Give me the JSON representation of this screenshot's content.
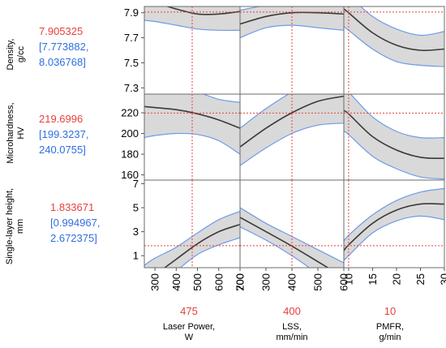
{
  "chart_data": {
    "type": "line",
    "title": "",
    "grid": false,
    "legend": "none",
    "colors": {
      "curve": "#3a3a3a",
      "band_fill": "#d9d9d9",
      "band_edge": "#6f9ae8",
      "crosshair": "#e8403c",
      "current_value": "#e8403c",
      "interval": "#2f6fe0"
    },
    "factors": [
      {
        "label": "Laser Power,",
        "unit": "W",
        "current": "475",
        "current_value": 475,
        "ticks": [
          "300",
          "400",
          "500",
          "600",
          "700"
        ],
        "tick_values": [
          300,
          400,
          500,
          600,
          700
        ],
        "xlim": [
          250,
          700
        ]
      },
      {
        "label": "LSS,",
        "unit": "mm/min",
        "current": "400",
        "current_value": 400,
        "ticks": [
          "200",
          "300",
          "400",
          "500",
          "600"
        ],
        "tick_values": [
          200,
          300,
          400,
          500,
          600
        ],
        "xlim": [
          200,
          600
        ]
      },
      {
        "label": "PMFR,",
        "unit": "g/min",
        "current": "10",
        "current_value": 10,
        "ticks": [
          "10",
          "15",
          "20",
          "25",
          "30"
        ],
        "tick_values": [
          10,
          15,
          20,
          25,
          30
        ],
        "xlim": [
          9,
          30
        ]
      }
    ],
    "responses": [
      {
        "label": "Density,",
        "unit": "g/cc",
        "predicted": "7.905325",
        "ci_low": "[7.773882,",
        "ci_high": "8.036768]",
        "predicted_value": 7.905325,
        "ticks": [
          "7.3",
          "7.5",
          "7.7",
          "7.9"
        ],
        "tick_values": [
          7.3,
          7.5,
          7.7,
          7.9
        ],
        "ylim": [
          7.25,
          7.95
        ]
      },
      {
        "label": "Microhardness,",
        "unit": "HV",
        "predicted": "219.6996",
        "ci_low": "[199.3237,",
        "ci_high": "240.0755]",
        "predicted_value": 219.6996,
        "ticks": [
          "160",
          "180",
          "200",
          "220"
        ],
        "tick_values": [
          160,
          180,
          200,
          220
        ],
        "ylim": [
          155,
          238
        ]
      },
      {
        "label": "Single-layer height,",
        "unit": "mm",
        "predicted": "1.833671",
        "ci_low": "[0.994967,",
        "ci_high": "2.672375]",
        "predicted_value": 1.833671,
        "ticks": [
          "1",
          "3",
          "5",
          "7"
        ],
        "tick_values": [
          1,
          3,
          5,
          7
        ],
        "ylim": [
          0,
          7.3
        ]
      }
    ],
    "cells": [
      [
        {
          "x": [
            250,
            300,
            400,
            500,
            600,
            700
          ],
          "y": [
            7.99,
            7.98,
            7.93,
            7.89,
            7.89,
            7.91
          ],
          "lower": [
            7.84,
            7.83,
            7.8,
            7.77,
            7.76,
            7.76
          ],
          "upper": [
            8.13,
            8.12,
            8.06,
            8.02,
            8.02,
            8.06
          ]
        },
        {
          "x": [
            200,
            300,
            400,
            500,
            600
          ],
          "y": [
            7.81,
            7.87,
            7.9,
            7.9,
            7.89
          ],
          "lower": [
            7.7,
            7.78,
            7.8,
            7.78,
            7.76
          ],
          "upper": [
            7.92,
            7.96,
            7.99,
            8.02,
            8.02
          ]
        },
        {
          "x": [
            9,
            10,
            15,
            20,
            25,
            30
          ],
          "y": [
            7.93,
            7.9,
            7.74,
            7.64,
            7.6,
            7.61
          ],
          "lower": [
            7.79,
            7.76,
            7.61,
            7.51,
            7.48,
            7.47
          ],
          "upper": [
            8.07,
            8.04,
            7.87,
            7.77,
            7.72,
            7.75
          ]
        }
      ],
      [
        {
          "x": [
            250,
            300,
            400,
            500,
            600,
            700
          ],
          "y": [
            226,
            225,
            223,
            219,
            213,
            205
          ],
          "lower": [
            196,
            198,
            200,
            199,
            193,
            180
          ],
          "upper": [
            255,
            252,
            246,
            240,
            233,
            230
          ]
        },
        {
          "x": [
            200,
            300,
            400,
            500,
            600
          ],
          "y": [
            187,
            205,
            220,
            231,
            236
          ],
          "lower": [
            169,
            186,
            200,
            208,
            210
          ],
          "upper": [
            205,
            224,
            240,
            254,
            262
          ]
        },
        {
          "x": [
            9,
            10,
            15,
            20,
            25,
            30
          ],
          "y": [
            222,
            219,
            197,
            184,
            177,
            176
          ],
          "lower": [
            202,
            199,
            178,
            166,
            158,
            156
          ],
          "upper": [
            242,
            240,
            216,
            202,
            196,
            196
          ]
        }
      ],
      [
        {
          "x": [
            250,
            300,
            400,
            500,
            600,
            700
          ],
          "y": [
            -1.4,
            -0.6,
            0.7,
            2.0,
            3.0,
            3.6
          ],
          "lower": [
            -3.0,
            -2.0,
            -0.3,
            1.1,
            1.9,
            2.5
          ],
          "upper": [
            0.2,
            0.8,
            1.7,
            2.9,
            4.0,
            4.7
          ]
        },
        {
          "x": [
            200,
            300,
            400,
            500,
            600
          ],
          "y": [
            4.2,
            3.0,
            1.8,
            0.5,
            -0.8
          ],
          "lower": [
            3.4,
            2.3,
            1.0,
            -0.5,
            -2.0
          ],
          "upper": [
            5.0,
            3.7,
            2.6,
            1.5,
            0.4
          ]
        },
        {
          "x": [
            9,
            10,
            15,
            20,
            25,
            30
          ],
          "y": [
            1.4,
            1.9,
            3.7,
            4.8,
            5.3,
            5.3
          ],
          "lower": [
            0.6,
            1.0,
            2.9,
            3.9,
            4.3,
            4.0
          ],
          "upper": [
            2.2,
            2.7,
            4.4,
            5.6,
            6.3,
            6.6
          ]
        }
      ]
    ]
  }
}
